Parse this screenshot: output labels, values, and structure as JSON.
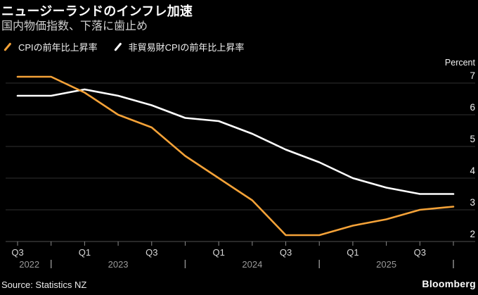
{
  "header": {
    "title": "ニュージーランドのインフレ加速",
    "subtitle": "国内物価指数、下落に歯止め"
  },
  "footer": {
    "source": "Source: Statistics NZ",
    "brand": "Bloomberg"
  },
  "colors": {
    "background": "#000000",
    "cpi_line": "#F4A238",
    "nontradables_line": "#FFFFFF",
    "gridline": "#313131",
    "axis_line": "#4f4f4f",
    "tick": "#8a8a8a",
    "quarter_label": "#d8d8d8",
    "year_label": "#9a9a9a",
    "y_label": "#f1f1f1"
  },
  "chart_data": {
    "type": "line",
    "title": "ニュージーランドのインフレ加速",
    "subtitle": "国内物価指数、下落に歯止め",
    "unit_label": "Percent",
    "grid": "horizontal",
    "legend_position": "top",
    "x": [
      "2022 Q3",
      "2022 Q4",
      "2023 Q1",
      "2023 Q2",
      "2023 Q3",
      "2023 Q4",
      "2024 Q1",
      "2024 Q2",
      "2024 Q3",
      "2024 Q4",
      "2025 Q1",
      "2025 Q2",
      "2025 Q3",
      "2025 Q4"
    ],
    "xtick_labels": [
      "Q3",
      "",
      "Q1",
      "",
      "Q3",
      "",
      "Q1",
      "",
      "Q3",
      "",
      "Q1",
      "",
      "Q3",
      ""
    ],
    "years": [
      {
        "label": "2022",
        "center_tick": 0.35
      },
      {
        "label": "2023",
        "center_tick": 3
      },
      {
        "label": "2024",
        "center_tick": 7
      },
      {
        "label": "2025",
        "center_tick": 11
      }
    ],
    "year_separator_ticks": [
      1,
      5,
      9,
      13
    ],
    "ylim": [
      2,
      7
    ],
    "yticks": [
      2,
      3,
      4,
      5,
      6,
      7
    ],
    "series": [
      {
        "name": "CPIの前年比上昇率",
        "color": "#F4A238",
        "values": [
          7.2,
          7.2,
          6.7,
          6.0,
          5.6,
          4.7,
          4.0,
          3.3,
          2.2,
          2.2,
          2.5,
          2.7,
          3.0,
          3.1
        ]
      },
      {
        "name": "非貿易財CPIの前年比上昇率",
        "color": "#FFFFFF",
        "values": [
          6.6,
          6.6,
          6.8,
          6.6,
          6.3,
          5.9,
          5.8,
          5.4,
          4.9,
          4.5,
          4.0,
          3.7,
          3.5,
          3.5
        ]
      }
    ]
  }
}
